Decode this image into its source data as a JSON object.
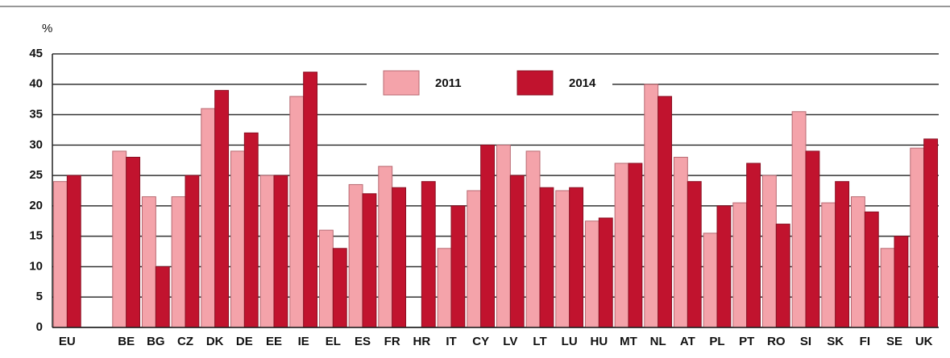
{
  "chart_data": {
    "type": "bar",
    "y_label": "%",
    "categories": [
      "EU",
      null,
      "BE",
      "BG",
      "CZ",
      "DK",
      "DE",
      "EE",
      "IE",
      "EL",
      "ES",
      "FR",
      "HR",
      "IT",
      "CY",
      "LV",
      "LT",
      "LU",
      "HU",
      "MT",
      "NL",
      "AT",
      "PL",
      "PT",
      "RO",
      "SI",
      "SK",
      "FI",
      "SE",
      "UK"
    ],
    "series": [
      {
        "name": "2011",
        "color": "#f4a3aa",
        "values": [
          24,
          null,
          29,
          21.5,
          21.5,
          36,
          29,
          25,
          38,
          16,
          23.5,
          26.5,
          null,
          13,
          22.5,
          30,
          29,
          22.5,
          17.5,
          27,
          40,
          28,
          15.5,
          20.5,
          25,
          35.5,
          20.5,
          21.5,
          13,
          29.5
        ]
      },
      {
        "name": "2014",
        "color": "#c1132e",
        "values": [
          25,
          null,
          28,
          10,
          25,
          39,
          32,
          25,
          42,
          13,
          22,
          23,
          24,
          20,
          30,
          25,
          23,
          23,
          18,
          27,
          38,
          24,
          20,
          27,
          17,
          29,
          24,
          19,
          15,
          31
        ]
      }
    ],
    "ylim": [
      0,
      45
    ],
    "yticks": [
      0,
      5,
      10,
      15,
      20,
      25,
      30,
      35,
      40,
      45
    ],
    "grid": true
  }
}
